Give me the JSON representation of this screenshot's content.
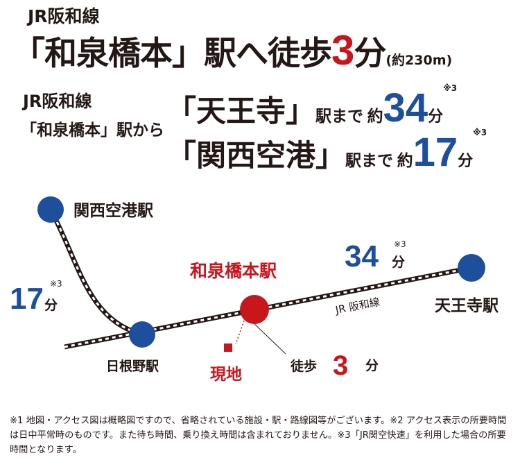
{
  "headline": {
    "line": "JR阪和線",
    "station": "「和泉橋本」駅へ徒歩",
    "minutes": "3",
    "unit": "分",
    "distance": "(約230m)"
  },
  "subheading": {
    "line": "JR阪和線",
    "from": "「和泉橋本」駅から"
  },
  "destinations": [
    {
      "name": "「天王寺」",
      "suffix": "駅まで",
      "approx": "約",
      "minutes": "34",
      "unit": "分",
      "note": "※3"
    },
    {
      "name": "「関西空港」",
      "suffix": "駅まで",
      "approx": "約",
      "minutes": "17",
      "unit": "分",
      "note": "※3"
    }
  ],
  "map": {
    "stations": {
      "kansai_airport": "関西空港駅",
      "hine_no": "日根野駅",
      "izumi_hashimoto": "和泉橋本駅",
      "tennoji": "天王寺駅"
    },
    "line_label": "JR 阪和線",
    "time_tennoji": {
      "value": "34",
      "unit": "分",
      "note": "※3"
    },
    "time_airport": {
      "value": "17",
      "unit": "分",
      "note": "※3"
    },
    "site_label": "現地",
    "walk": {
      "label": "徒歩",
      "value": "3",
      "unit": "分"
    },
    "colors": {
      "blue": "#1d4f9c",
      "red": "#c8161d",
      "dark": "#231815"
    }
  },
  "footnote": "※1 地図・アクセス図は概略図ですので、省略されている施設・駅・路線図等がございます。※2 アクセス表示の所要時間は日中平常時のものです。また待ち時間、乗り換え時間は含まれておりません。※3「JR関空快速」を利用した場合の所要時間となります。"
}
